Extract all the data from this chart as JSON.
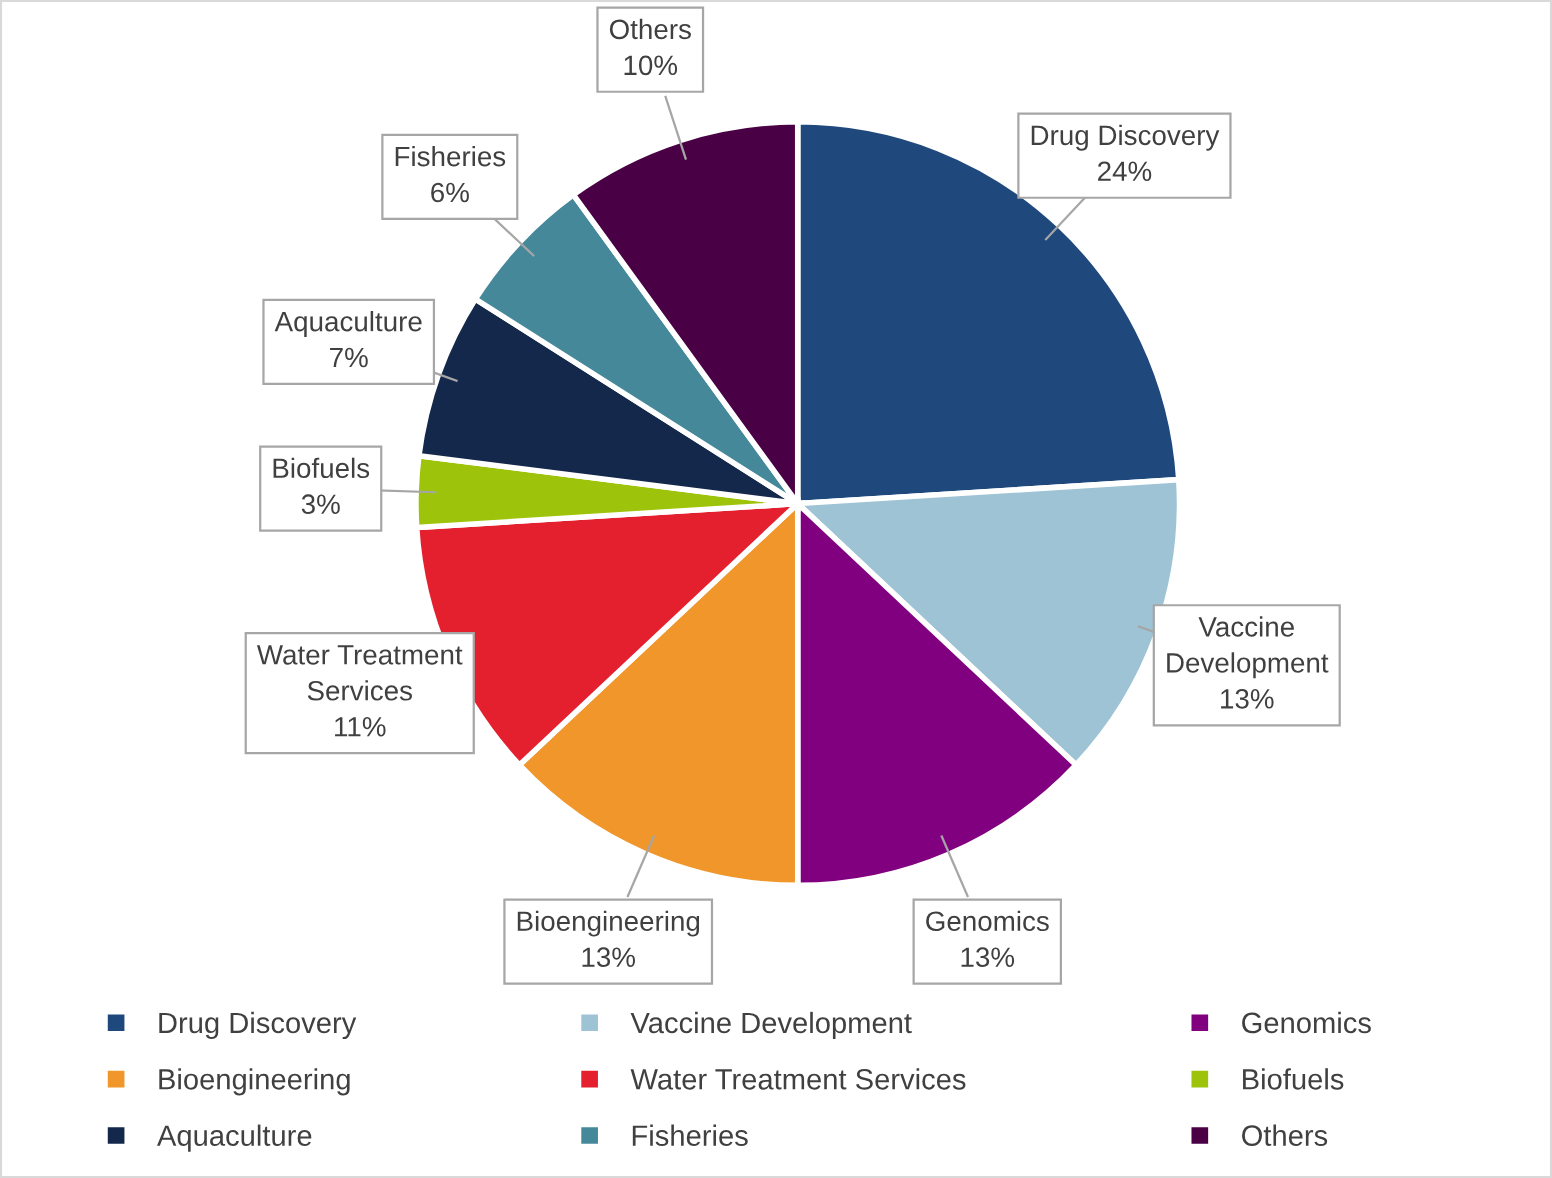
{
  "chart_data": {
    "type": "pie",
    "categories": [
      "Drug Discovery",
      "Vaccine Development",
      "Genomics",
      "Bioengineering",
      "Water Treatment Services",
      "Biofuels",
      "Aquaculture",
      "Fisheries",
      "Others"
    ],
    "values": [
      24,
      13,
      13,
      13,
      11,
      3,
      7,
      6,
      10
    ],
    "value_labels": [
      "24%",
      "13%",
      "13%",
      "13%",
      "11%",
      "3%",
      "7%",
      "6%",
      "10%"
    ],
    "colors": [
      "#1f497d",
      "#9dc3d4",
      "#800080",
      "#f0962a",
      "#e5202e",
      "#9dc30a",
      "#14284b",
      "#45889a",
      "#4a0045"
    ],
    "legend": "bottom"
  }
}
